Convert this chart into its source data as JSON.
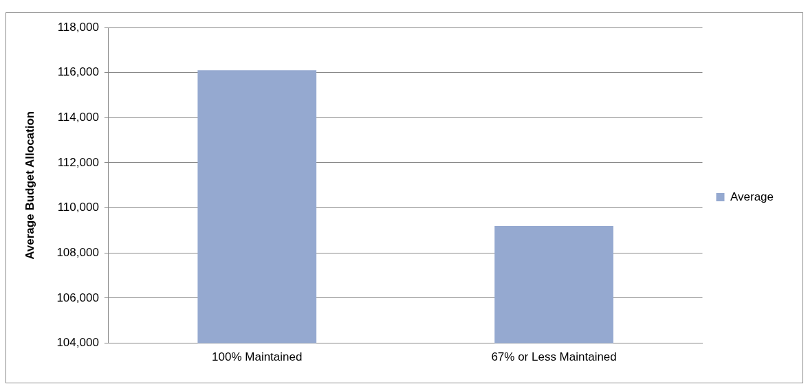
{
  "chart_data": {
    "type": "bar",
    "ylabel": "Average Budget Allocation",
    "categories": [
      "100% Maintained",
      "67% or Less Maintained"
    ],
    "series": [
      {
        "name": "Average",
        "color": "#95a9d0",
        "values": [
          116100,
          109200
        ]
      }
    ],
    "ylim": [
      104000,
      118000
    ],
    "yticks": [
      {
        "value": 104000,
        "label": "104,000"
      },
      {
        "value": 106000,
        "label": "106,000"
      },
      {
        "value": 108000,
        "label": "108,000"
      },
      {
        "value": 110000,
        "label": "110,000"
      },
      {
        "value": 112000,
        "label": "112,000"
      },
      {
        "value": 114000,
        "label": "114,000"
      },
      {
        "value": 116000,
        "label": "116,000"
      },
      {
        "value": 118000,
        "label": "118,000"
      }
    ],
    "grid": "y",
    "legend": "right"
  }
}
